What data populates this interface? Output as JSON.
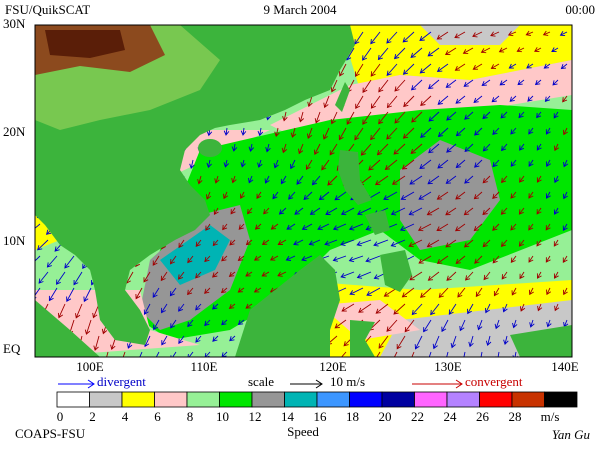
{
  "header": {
    "source": "FSU/QuikSCAT",
    "date": "9 March 2004",
    "time": "00:00"
  },
  "map": {
    "lat_labels": [
      "30N",
      "20N",
      "10N",
      "EQ"
    ],
    "lon_labels": [
      "100E",
      "110E",
      "120E",
      "130E",
      "140E"
    ]
  },
  "legend": {
    "divergent": "divergent",
    "scale": "scale",
    "scale_value": "10 m/s",
    "convergent": "convergent"
  },
  "colorbar": {
    "ticks": [
      0,
      2,
      4,
      6,
      8,
      10,
      12,
      14,
      16,
      18,
      20,
      22,
      24,
      26,
      28
    ],
    "unit": "m/s",
    "title": "Speed",
    "colors": [
      "#ffffff",
      "#c8c8c8",
      "#ffff00",
      "#ffc8c8",
      "#96f096",
      "#00e600",
      "#969696",
      "#00b4b4",
      "#3c96ff",
      "#0000ff",
      "#0000a0",
      "#ff64ff",
      "#b482ff",
      "#ff0000",
      "#c83200",
      "#000000"
    ]
  },
  "footer": {
    "credit": "COAPS-FSU",
    "author": "Yan Gu"
  }
}
